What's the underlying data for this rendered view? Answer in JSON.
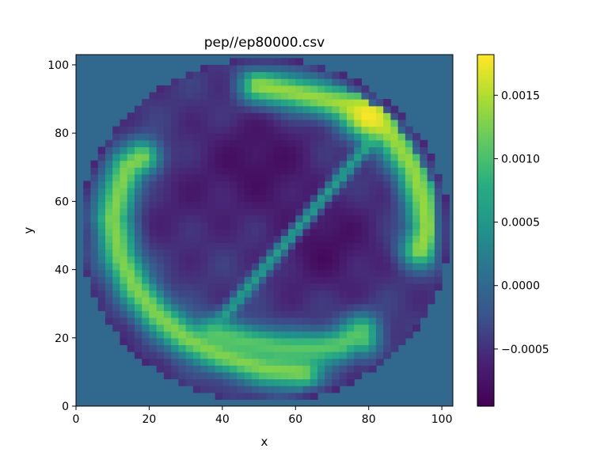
{
  "chart_data": {
    "type": "heatmap",
    "title": "pep//ep80000.csv",
    "xlabel": "x",
    "ylabel": "y",
    "xlim": [
      0,
      103
    ],
    "ylim": [
      0,
      103
    ],
    "x_ticks": [
      0,
      20,
      40,
      60,
      80,
      100
    ],
    "y_ticks": [
      0,
      20,
      40,
      60,
      80,
      100
    ],
    "colormap": "viridis",
    "colorbar": {
      "vmin": -0.00095,
      "vmax": 0.00182,
      "ticks": [
        -0.0005,
        0.0,
        0.0005,
        0.001,
        0.0015
      ],
      "tick_labels": [
        "−0.0005",
        "0.0000",
        "0.0005",
        "0.0010",
        "0.0015"
      ]
    },
    "background_value": 0.0,
    "domain": {
      "shape": "circle",
      "center": [
        51.5,
        51.5
      ],
      "radius": 50.5
    },
    "structures": {
      "diagonal_filament": {
        "from": [
          37,
          22
        ],
        "to": [
          84,
          82
        ],
        "value": 0.0006
      },
      "arms": [
        {
          "name": "upper-right-arm",
          "path": [
            [
              50,
              94
            ],
            [
              60,
              92
            ],
            [
              72,
              89
            ],
            [
              80,
              86
            ],
            [
              86,
              80
            ],
            [
              92,
              70
            ],
            [
              95,
              60
            ],
            [
              96,
              52
            ],
            [
              94,
              46
            ]
          ],
          "value": 0.0014
        },
        {
          "name": "left-arm",
          "path": [
            [
              18,
              73
            ],
            [
              14,
              70
            ],
            [
              12,
              64
            ],
            [
              10,
              55
            ],
            [
              12,
              44
            ],
            [
              16,
              35
            ],
            [
              22,
              27
            ],
            [
              30,
              20
            ],
            [
              40,
              15
            ],
            [
              52,
              11
            ],
            [
              62,
              10
            ]
          ],
          "value": 0.0013
        },
        {
          "name": "lower-right-arm",
          "path": [
            [
              38,
              21
            ],
            [
              46,
              19
            ],
            [
              56,
              17
            ],
            [
              66,
              17
            ],
            [
              72,
              18
            ],
            [
              78,
              22
            ],
            [
              78,
              20
            ]
          ],
          "value": 0.0011
        }
      ],
      "hot_spot": {
        "center": [
          80,
          85
        ],
        "value": 0.0018
      },
      "depressions": [
        {
          "center": [
            50,
            72
          ],
          "value": -0.0008
        },
        {
          "center": [
            68,
            48
          ],
          "value": -0.0008
        },
        {
          "center": [
            28,
            60
          ],
          "value": -0.0006
        }
      ]
    }
  }
}
